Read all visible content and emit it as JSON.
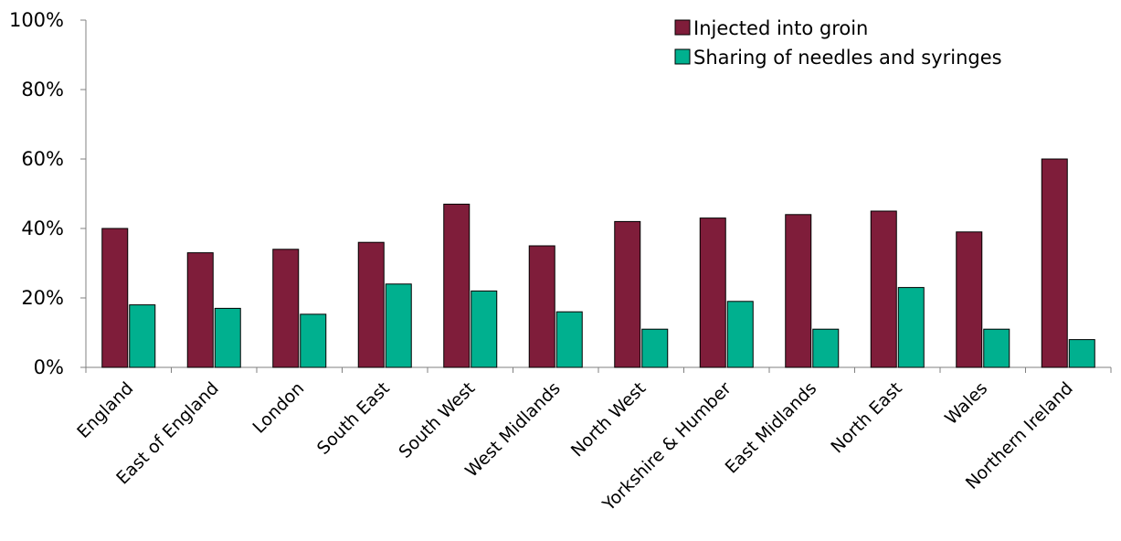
{
  "chart_data": {
    "type": "bar",
    "categories": [
      "England",
      "East of England",
      "London",
      "South East",
      "South West",
      "West Midlands",
      "North West",
      "Yorkshire & Humber",
      "East Midlands",
      "North East",
      "Wales",
      "Northern Ireland"
    ],
    "series": [
      {
        "name": "Injected into groin",
        "color": "#7f1d3a",
        "values": [
          40,
          33,
          34,
          36,
          47,
          35,
          42,
          43,
          44,
          45,
          39,
          60
        ]
      },
      {
        "name": "Sharing of needles and syringes",
        "color": "#00b08f",
        "values": [
          18,
          17,
          15.3,
          24,
          22,
          16,
          11,
          19,
          11,
          23,
          11,
          8
        ]
      }
    ],
    "y_ticks": [
      "0%",
      "20%",
      "40%",
      "60%",
      "80%",
      "100%"
    ],
    "ylim": [
      0,
      100
    ],
    "grid": false,
    "legend_position": "top-right"
  }
}
